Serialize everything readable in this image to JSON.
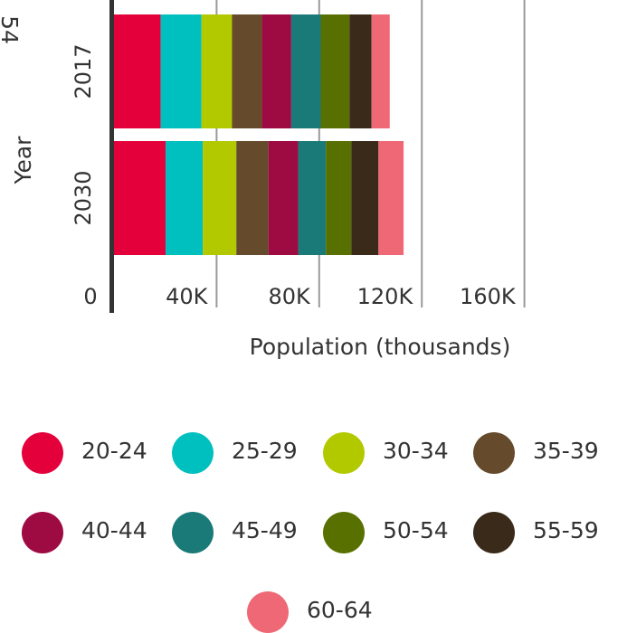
{
  "chart_data": {
    "type": "bar",
    "orientation": "horizontal",
    "stacked": true,
    "title": "",
    "xlabel": "Population (thousands)",
    "ylabel": "Year",
    "xlim": [
      0,
      200
    ],
    "x_ticks": [
      0,
      40,
      80,
      120,
      160
    ],
    "x_tick_labels": [
      "0",
      "40K",
      "80K",
      "120K",
      "160K"
    ],
    "categories": [
      "2017",
      "2030"
    ],
    "series": [
      {
        "name": "20-24",
        "color": "#e4003b",
        "values": [
          18.2,
          20.1
        ]
      },
      {
        "name": "25-29",
        "color": "#00bfbf",
        "values": [
          15.9,
          14.5
        ]
      },
      {
        "name": "30-34",
        "color": "#b2c900",
        "values": [
          11.9,
          13.1
        ]
      },
      {
        "name": "35-39",
        "color": "#654a2b",
        "values": [
          11.7,
          12.5
        ]
      },
      {
        "name": "40-44",
        "color": "#9e0a42",
        "values": [
          11.4,
          11.6
        ]
      },
      {
        "name": "45-49",
        "color": "#1a7a78",
        "values": [
          11.5,
          10.8
        ]
      },
      {
        "name": "50-54",
        "color": "#587000",
        "values": [
          11.2,
          9.9
        ]
      },
      {
        "name": "55-59",
        "color": "#3a2a1a",
        "values": [
          8.6,
          10.6
        ]
      },
      {
        "name": "60-64",
        "color": "#ee6876",
        "values": [
          7.1,
          9.8
        ]
      }
    ],
    "legend_position": "bottom",
    "grid": true,
    "clipped_text": "54"
  }
}
